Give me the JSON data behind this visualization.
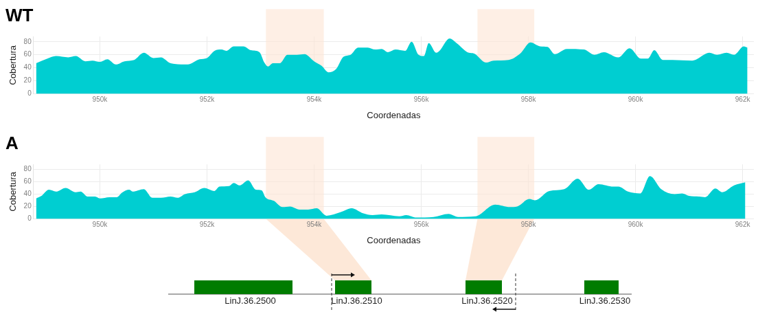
{
  "chart_data": [
    {
      "type": "area",
      "title": "WT",
      "xlabel": "Coordenadas",
      "ylabel": "Cobertura",
      "x": [
        948810,
        949020,
        949180,
        949410,
        949550,
        949730,
        949860,
        950000,
        950140,
        950300,
        950460,
        950640,
        950820,
        951000,
        951140,
        951320,
        951640,
        951860,
        952000,
        952140,
        952270,
        952360,
        952500,
        952680,
        952820,
        952980,
        953070,
        953140,
        953230,
        953360,
        953500,
        953680,
        953820,
        954000,
        954140,
        954270,
        954410,
        954550,
        954680,
        954820,
        955000,
        955140,
        955260,
        955380,
        955520,
        955700,
        955820,
        955950,
        956050,
        956140,
        956280,
        956340,
        956530,
        956660,
        956890,
        956980,
        957210,
        957350,
        957630,
        957850,
        958040,
        958220,
        958360,
        958490,
        958720,
        959040,
        959230,
        959410,
        959680,
        959890,
        960100,
        960230,
        960350,
        960510,
        960690,
        961060,
        961380,
        961520,
        961700,
        961840,
        962020,
        962090
      ],
      "series": [
        {
          "color": "#00ced1",
          "values": [
            47,
            54,
            58,
            56,
            58,
            50,
            51,
            49,
            53,
            45,
            50,
            52,
            63,
            55,
            56,
            47,
            45,
            53,
            55,
            66,
            68,
            66,
            73,
            73,
            67,
            64,
            48,
            42,
            47,
            47,
            60,
            60,
            61,
            50,
            43,
            33,
            38,
            57,
            60,
            71,
            71,
            68,
            69,
            64,
            68,
            66,
            80,
            60,
            58,
            78,
            63,
            66,
            85,
            78,
            63,
            62,
            48,
            51,
            52,
            62,
            79,
            73,
            72,
            61,
            69,
            68,
            60,
            64,
            56,
            70,
            54,
            54,
            67,
            52,
            52,
            51,
            63,
            60,
            63,
            60,
            73,
            71
          ]
        }
      ],
      "xlim": [
        948760,
        962210
      ],
      "ylim": [
        0,
        88
      ],
      "xticks": [
        {
          "value": 950000,
          "label": "950k"
        },
        {
          "value": 952000,
          "label": "952k"
        },
        {
          "value": 954000,
          "label": "954k"
        },
        {
          "value": 956000,
          "label": "956k"
        },
        {
          "value": 958000,
          "label": "958k"
        },
        {
          "value": 960000,
          "label": "960k"
        },
        {
          "value": 962000,
          "label": "962k"
        }
      ],
      "yticks": [
        0,
        20,
        40,
        60,
        80
      ],
      "grid": true,
      "bands": [
        {
          "axis": "x",
          "from": 953100,
          "to": 954180,
          "color": "#fde5d4"
        },
        {
          "axis": "x",
          "from": 957050,
          "to": 958110,
          "color": "#fde5d4"
        }
      ]
    },
    {
      "type": "area",
      "title": "A",
      "xlabel": "Coordenadas",
      "ylabel": "Cobertura",
      "x": [
        948810,
        948910,
        949050,
        949180,
        949360,
        949550,
        949640,
        949770,
        949910,
        950000,
        950180,
        950320,
        950410,
        950550,
        950610,
        950820,
        950980,
        951140,
        951320,
        951450,
        951590,
        951770,
        951950,
        952140,
        952230,
        952410,
        952500,
        952610,
        952770,
        952910,
        953020,
        953090,
        953250,
        953410,
        953550,
        953730,
        953890,
        954050,
        954230,
        954500,
        954700,
        954910,
        955090,
        955260,
        955590,
        955720,
        955910,
        956230,
        956510,
        956690,
        957010,
        957380,
        957660,
        957790,
        958020,
        958120,
        958390,
        958670,
        958920,
        959130,
        959310,
        959590,
        959680,
        959860,
        960090,
        960270,
        960480,
        960730,
        960870,
        961000,
        961190,
        961300,
        961490,
        961620,
        961840,
        962050
      ],
      "series": [
        {
          "color": "#00ced1",
          "values": [
            33,
            37,
            47,
            44,
            50,
            43,
            44,
            36,
            36,
            33,
            35,
            35,
            42,
            47,
            44,
            48,
            34,
            34,
            36,
            34,
            40,
            43,
            50,
            45,
            52,
            53,
            58,
            54,
            62,
            47,
            46,
            35,
            29,
            19,
            20,
            15,
            15,
            17,
            5,
            11,
            17,
            9,
            6,
            7,
            4,
            6,
            2,
            3,
            8,
            3,
            4,
            23,
            19,
            20,
            32,
            30,
            45,
            48,
            65,
            47,
            56,
            52,
            52,
            44,
            41,
            69,
            48,
            40,
            41,
            37,
            36,
            35,
            49,
            43,
            54,
            59
          ]
        }
      ],
      "xlim": [
        948760,
        962210
      ],
      "ylim": [
        0,
        88
      ],
      "xticks": [
        {
          "value": 950000,
          "label": "950k"
        },
        {
          "value": 952000,
          "label": "952k"
        },
        {
          "value": 954000,
          "label": "954k"
        },
        {
          "value": 956000,
          "label": "956k"
        },
        {
          "value": 958000,
          "label": "958k"
        },
        {
          "value": 960000,
          "label": "960k"
        },
        {
          "value": 962000,
          "label": "962k"
        }
      ],
      "yticks": [
        0,
        20,
        40,
        60,
        80
      ],
      "grid": true,
      "bands": [
        {
          "axis": "x",
          "from": 953100,
          "to": 954180,
          "color": "#fde5d4"
        },
        {
          "axis": "x",
          "from": 957050,
          "to": 958110,
          "color": "#fde5d4"
        }
      ]
    },
    {
      "type": "other",
      "annotations": [
        "LinJ.36.2500",
        "LinJ.36.2510",
        "LinJ.36.2520",
        "LinJ.36.2530"
      ]
    }
  ]
}
